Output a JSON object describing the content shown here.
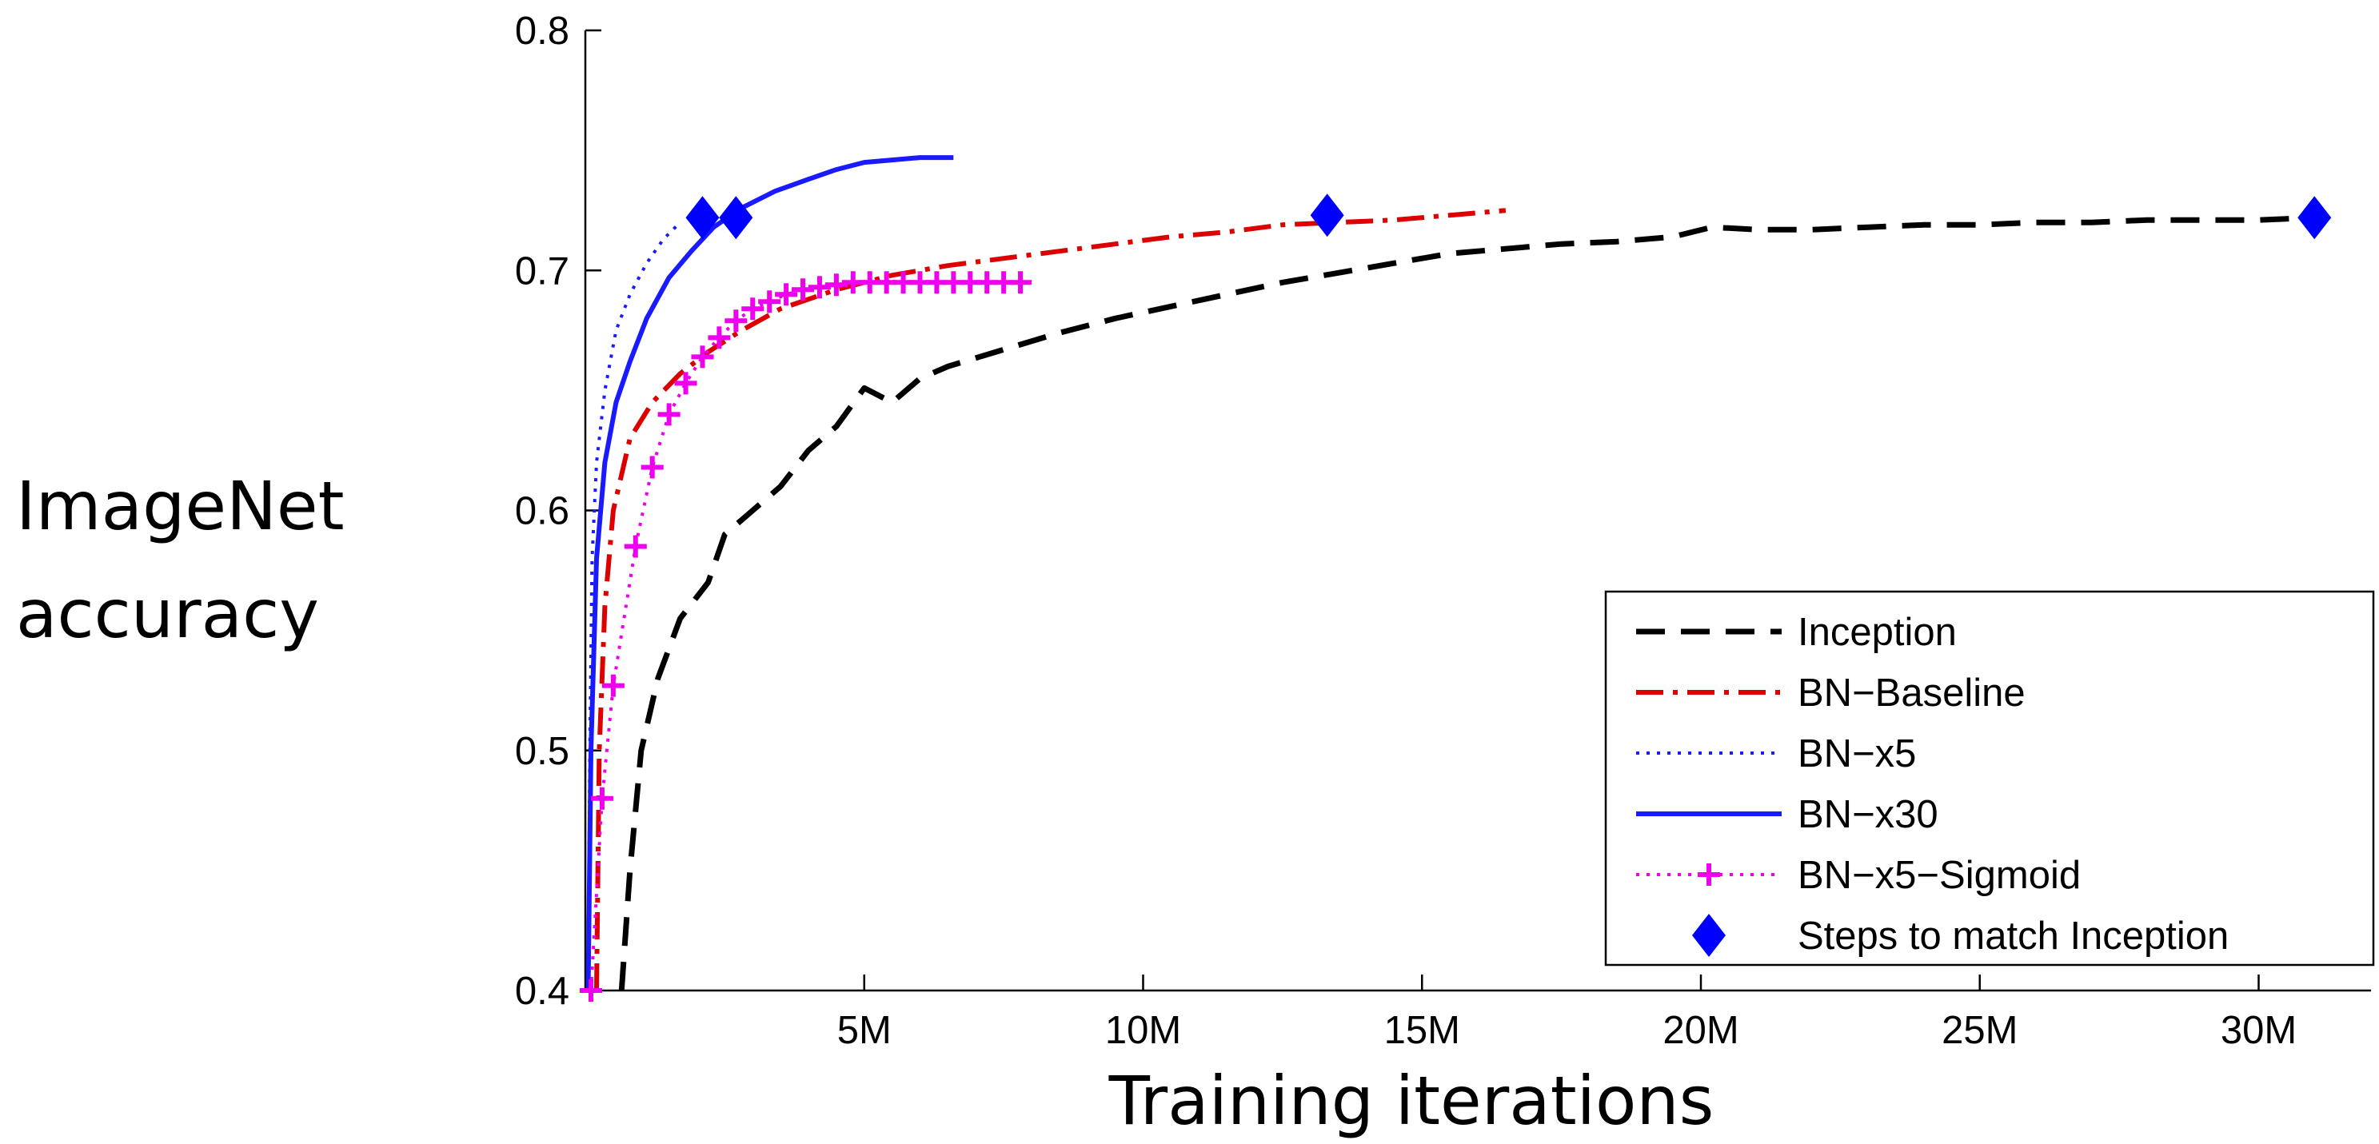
{
  "chart_data": {
    "type": "line",
    "xlabel": "Training iterations",
    "ylabel": "ImageNet accuracy",
    "xlim": [
      0,
      32000000
    ],
    "ylim": [
      0.4,
      0.8
    ],
    "x_ticks": [
      {
        "value": 5000000,
        "label": "5M"
      },
      {
        "value": 10000000,
        "label": "10M"
      },
      {
        "value": 15000000,
        "label": "15M"
      },
      {
        "value": 20000000,
        "label": "20M"
      },
      {
        "value": 25000000,
        "label": "25M"
      },
      {
        "value": 30000000,
        "label": "30M"
      }
    ],
    "y_ticks": [
      {
        "value": 0.4,
        "label": "0.4"
      },
      {
        "value": 0.5,
        "label": "0.5"
      },
      {
        "value": 0.6,
        "label": "0.6"
      },
      {
        "value": 0.7,
        "label": "0.7"
      },
      {
        "value": 0.8,
        "label": "0.8"
      }
    ],
    "grid": false,
    "legend_position": "bottom-right",
    "series": [
      {
        "name": "Inception",
        "color": "#000000",
        "style": "dashed",
        "marker": "none",
        "points": [
          [
            650000,
            0.4
          ],
          [
            800000,
            0.45
          ],
          [
            1000000,
            0.5
          ],
          [
            1300000,
            0.53
          ],
          [
            1700000,
            0.555
          ],
          [
            2200000,
            0.57
          ],
          [
            2500000,
            0.59
          ],
          [
            3000000,
            0.6
          ],
          [
            3500000,
            0.61
          ],
          [
            4000000,
            0.625
          ],
          [
            4500000,
            0.635
          ],
          [
            5000000,
            0.651
          ],
          [
            5500000,
            0.645
          ],
          [
            6000000,
            0.655
          ],
          [
            6500000,
            0.66
          ],
          [
            7500000,
            0.667
          ],
          [
            8500000,
            0.674
          ],
          [
            9500000,
            0.68
          ],
          [
            10500000,
            0.685
          ],
          [
            11500000,
            0.69
          ],
          [
            12500000,
            0.695
          ],
          [
            13500000,
            0.699
          ],
          [
            14500000,
            0.703
          ],
          [
            15500000,
            0.707
          ],
          [
            16500000,
            0.709
          ],
          [
            17500000,
            0.711
          ],
          [
            18500000,
            0.712
          ],
          [
            19500000,
            0.714
          ],
          [
            20200000,
            0.718
          ],
          [
            21000000,
            0.717
          ],
          [
            22000000,
            0.717
          ],
          [
            23000000,
            0.718
          ],
          [
            24000000,
            0.719
          ],
          [
            25000000,
            0.719
          ],
          [
            26000000,
            0.72
          ],
          [
            27000000,
            0.72
          ],
          [
            28000000,
            0.721
          ],
          [
            29000000,
            0.721
          ],
          [
            30000000,
            0.721
          ],
          [
            31000000,
            0.722
          ]
        ]
      },
      {
        "name": "BN−Baseline",
        "color": "#dd0000",
        "style": "dashdot",
        "marker": "none",
        "points": [
          [
            200000,
            0.4
          ],
          [
            250000,
            0.5
          ],
          [
            350000,
            0.56
          ],
          [
            500000,
            0.6
          ],
          [
            800000,
            0.63
          ],
          [
            1200000,
            0.645
          ],
          [
            1700000,
            0.657
          ],
          [
            2200000,
            0.666
          ],
          [
            2800000,
            0.675
          ],
          [
            3500000,
            0.684
          ],
          [
            4500000,
            0.692
          ],
          [
            5500000,
            0.698
          ],
          [
            6500000,
            0.702
          ],
          [
            7500000,
            0.705
          ],
          [
            8500000,
            0.708
          ],
          [
            9500000,
            0.711
          ],
          [
            10500000,
            0.714
          ],
          [
            11500000,
            0.716
          ],
          [
            12500000,
            0.719
          ],
          [
            13500000,
            0.72
          ],
          [
            14500000,
            0.721
          ],
          [
            15500000,
            0.723
          ],
          [
            16500000,
            0.725
          ]
        ]
      },
      {
        "name": "BN−x5",
        "color": "#1a1aff",
        "style": "dotted",
        "marker": "none",
        "points": [
          [
            50000,
            0.4
          ],
          [
            80000,
            0.5
          ],
          [
            120000,
            0.58
          ],
          [
            200000,
            0.62
          ],
          [
            350000,
            0.65
          ],
          [
            550000,
            0.675
          ],
          [
            800000,
            0.69
          ],
          [
            1100000,
            0.703
          ],
          [
            1400000,
            0.713
          ],
          [
            1700000,
            0.72
          ]
        ]
      },
      {
        "name": "BN−x30",
        "color": "#1a1aff",
        "style": "solid",
        "marker": "none",
        "points": [
          [
            50000,
            0.4
          ],
          [
            100000,
            0.5
          ],
          [
            200000,
            0.58
          ],
          [
            350000,
            0.62
          ],
          [
            550000,
            0.645
          ],
          [
            800000,
            0.662
          ],
          [
            1100000,
            0.68
          ],
          [
            1500000,
            0.697
          ],
          [
            1900000,
            0.708
          ],
          [
            2300000,
            0.718
          ],
          [
            2800000,
            0.726
          ],
          [
            3400000,
            0.733
          ],
          [
            4000000,
            0.738
          ],
          [
            4500000,
            0.742
          ],
          [
            5000000,
            0.745
          ],
          [
            5500000,
            0.746
          ],
          [
            6000000,
            0.747
          ],
          [
            6600000,
            0.747
          ]
        ]
      },
      {
        "name": "BN−x5−Sigmoid",
        "color": "#ee00ee",
        "style": "dotted",
        "marker": "plus",
        "points": [
          [
            100000,
            0.4
          ],
          [
            300000,
            0.48
          ],
          [
            500000,
            0.527
          ],
          [
            900000,
            0.585
          ],
          [
            1200000,
            0.618
          ],
          [
            1500000,
            0.64
          ],
          [
            1800000,
            0.653
          ],
          [
            2100000,
            0.664
          ],
          [
            2400000,
            0.672
          ],
          [
            2700000,
            0.679
          ],
          [
            3000000,
            0.684
          ],
          [
            3300000,
            0.687
          ],
          [
            3600000,
            0.69
          ],
          [
            3900000,
            0.692
          ],
          [
            4200000,
            0.693
          ],
          [
            4500000,
            0.694
          ],
          [
            4800000,
            0.695
          ],
          [
            5100000,
            0.695
          ],
          [
            5400000,
            0.695
          ],
          [
            5700000,
            0.695
          ],
          [
            6000000,
            0.695
          ],
          [
            6300000,
            0.695
          ],
          [
            6600000,
            0.695
          ],
          [
            6900000,
            0.695
          ],
          [
            7200000,
            0.695
          ],
          [
            7500000,
            0.695
          ],
          [
            7800000,
            0.695
          ]
        ]
      },
      {
        "name": "Steps to match Inception",
        "color": "#0000ff",
        "style": "none",
        "marker": "diamond",
        "points": [
          [
            2100000,
            0.722
          ],
          [
            2700000,
            0.722
          ],
          [
            13300000,
            0.723
          ],
          [
            31000000,
            0.722
          ]
        ]
      }
    ]
  }
}
